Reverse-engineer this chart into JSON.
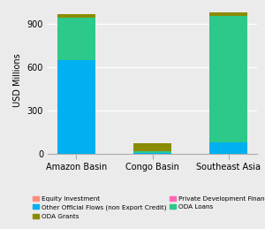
{
  "categories": [
    "Amazon Basin",
    "Congo Basin",
    "Southeast Asia"
  ],
  "series_order": [
    "Other Official Flows (non Export Credit)",
    "ODA Loans",
    "ODA Grants",
    "Equity Investment",
    "Private Development Finance"
  ],
  "series": {
    "Equity Investment": [
      0,
      0,
      0
    ],
    "ODA Grants": [
      25,
      55,
      28
    ],
    "ODA Loans": [
      295,
      8,
      880
    ],
    "Other Official Flows (non Export Credit)": [
      650,
      5,
      75
    ],
    "Private Development Finance": [
      0,
      0,
      0
    ]
  },
  "colors": {
    "Equity Investment": "#FF8C7A",
    "ODA Grants": "#8B8B00",
    "ODA Loans": "#2DC98A",
    "Other Official Flows (non Export Credit)": "#00B0F0",
    "Private Development Finance": "#FF69B4"
  },
  "ylabel": "USD Millions",
  "ylim": [
    0,
    1020
  ],
  "yticks": [
    0,
    300,
    600,
    900
  ],
  "background_color": "#EBEBEB",
  "plot_background": "#EBEBEB",
  "grid_color": "#FFFFFF",
  "legend_order": [
    "Equity Investment",
    "Other Official Flows (non Export Credit)",
    "ODA Grants",
    "Private Development Finance",
    "ODA Loans"
  ]
}
